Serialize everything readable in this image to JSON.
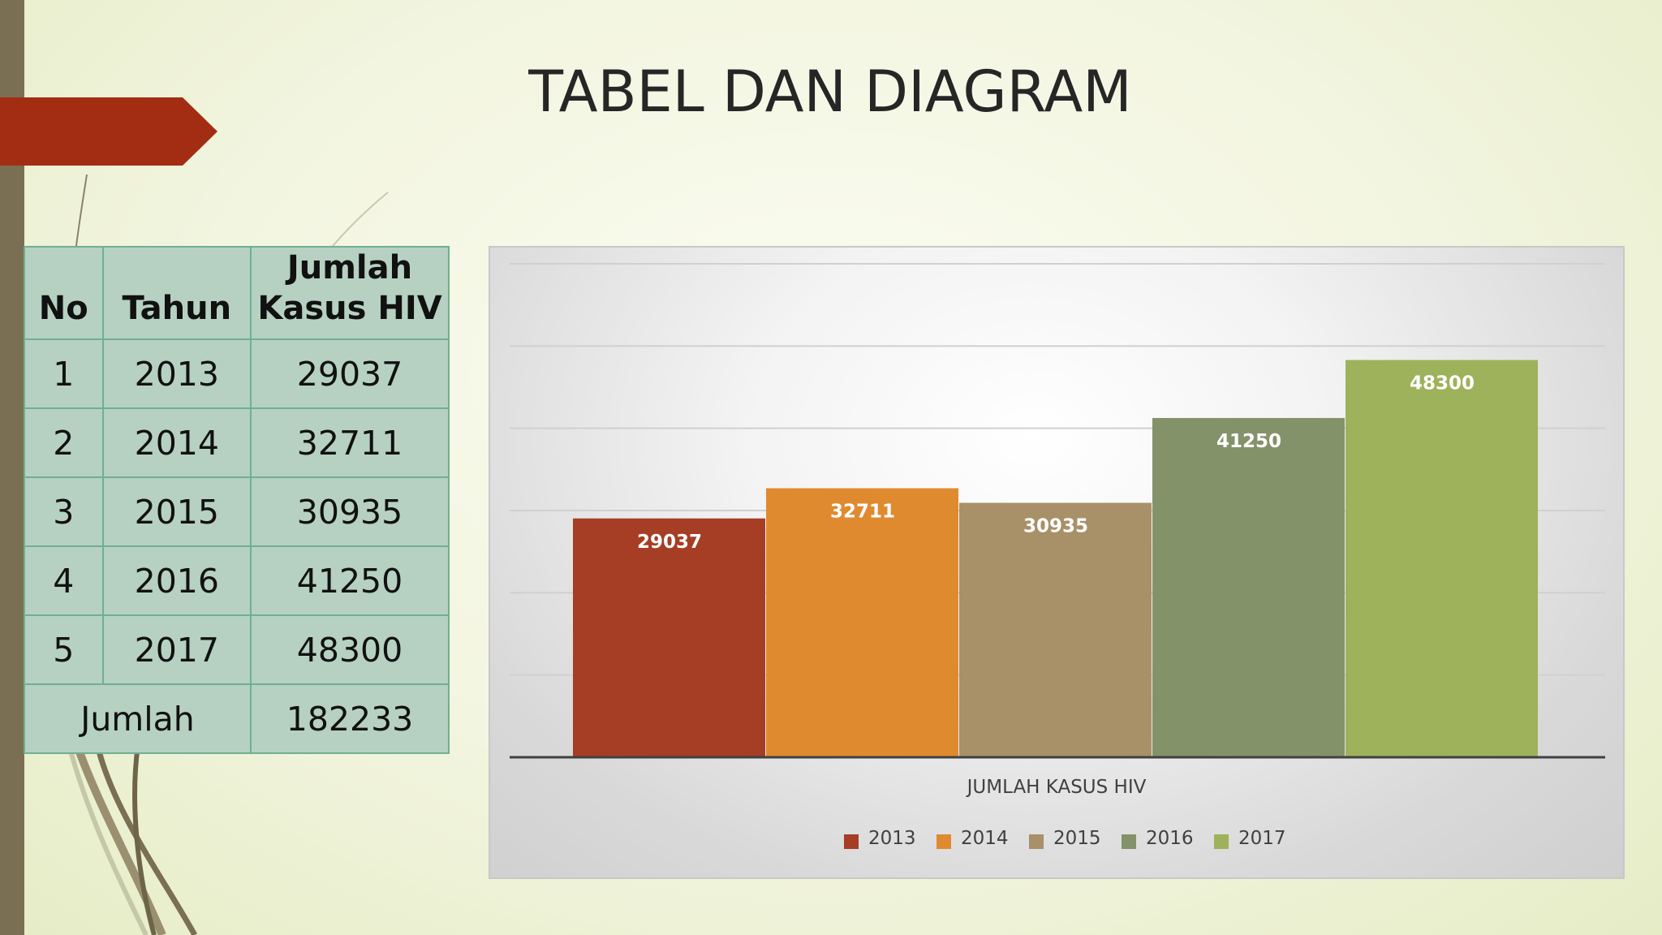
{
  "slide": {
    "title": "TABEL DAN DIAGRAM"
  },
  "table": {
    "headers": {
      "no": "No",
      "tahun": "Tahun",
      "jumlah_line1": "Jumlah",
      "jumlah_line2": "Kasus HIV"
    },
    "rows": [
      {
        "no": "1",
        "tahun": "2013",
        "kasus": "29037"
      },
      {
        "no": "2",
        "tahun": "2014",
        "kasus": "32711"
      },
      {
        "no": "3",
        "tahun": "2015",
        "kasus": "30935"
      },
      {
        "no": "4",
        "tahun": "2016",
        "kasus": "41250"
      },
      {
        "no": "5",
        "tahun": "2017",
        "kasus": "48300"
      }
    ],
    "total_label": "Jumlah",
    "total_value": "182233"
  },
  "chart_data": {
    "type": "bar",
    "title": "",
    "xlabel": "JUMLAH KASUS HIV",
    "ylabel": "",
    "ylim": [
      0,
      60000
    ],
    "grid": true,
    "legend": "bottom",
    "series": [
      {
        "name": "2013",
        "values": [
          29037
        ],
        "color": "#a63d25"
      },
      {
        "name": "2014",
        "values": [
          32711
        ],
        "color": "#e08a30"
      },
      {
        "name": "2015",
        "values": [
          30935
        ],
        "color": "#a89068"
      },
      {
        "name": "2016",
        "values": [
          41250
        ],
        "color": "#84926a"
      },
      {
        "name": "2017",
        "values": [
          48300
        ],
        "color": "#9db25a"
      }
    ]
  },
  "theme": {
    "accent_red": "#a32d12",
    "sidebar": "#7a6e53",
    "table_fill": "#b6d1c1",
    "table_border": "#6fb08f"
  }
}
